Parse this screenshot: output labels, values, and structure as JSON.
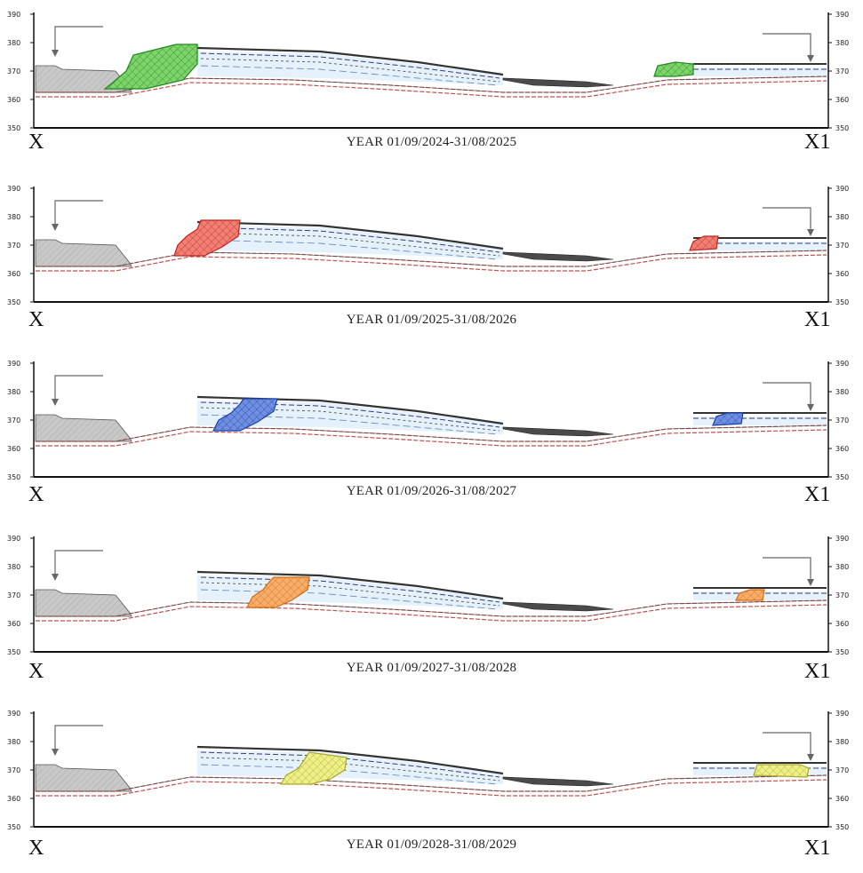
{
  "figure": {
    "y_axis_ticks": [
      "390",
      "380",
      "370",
      "360",
      "350"
    ],
    "left_end_label": "X",
    "right_end_label": "X1",
    "colors": {
      "existing_ground": "#c8c8c8",
      "tailings_fill": "#e6f2fb",
      "pond": "#4a4a4a",
      "foundation_dash": "#c0504d",
      "layer_dash": "#3a3a7a"
    },
    "panels": [
      {
        "caption": "YEAR 01/09/2024-31/08/2025",
        "stage_color": "#7fd36b",
        "stage_stroke": "#1f8a1f"
      },
      {
        "caption": "YEAR 01/09/2025-31/08/2026",
        "stage_color": "#f08074",
        "stage_stroke": "#c0251f"
      },
      {
        "caption": "YEAR 01/09/2026-31/08/2027",
        "stage_color": "#6f8fe0",
        "stage_stroke": "#1f3fa8"
      },
      {
        "caption": "YEAR 01/09/2027-31/08/2028",
        "stage_color": "#f6ae6a",
        "stage_stroke": "#d36a12"
      },
      {
        "caption": "YEAR 01/09/2028-31/08/2029",
        "stage_color": "#eef08a",
        "stage_stroke": "#a9a92a"
      }
    ]
  }
}
